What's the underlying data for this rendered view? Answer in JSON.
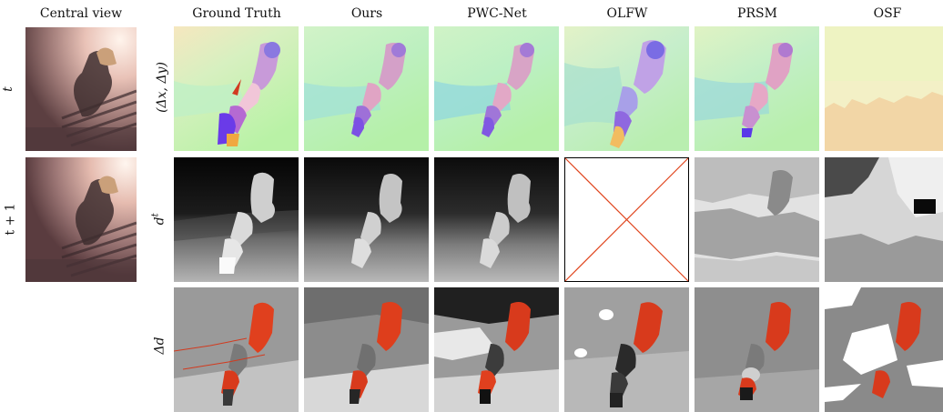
{
  "figure": {
    "headers": {
      "central_view": "Central view",
      "ground_truth": "Ground Truth",
      "ours": "Ours",
      "pwc_net": "PWC-Net",
      "olfw": "OLFW",
      "prsm": "PRSM",
      "osf": "OSF"
    },
    "time_labels": {
      "t": "t",
      "t_plus_1": "t + 1"
    },
    "row_labels": {
      "flow": "(Δx, Δy)",
      "disparity": "d",
      "disparity_sup": "t",
      "disparity_change": "Δd"
    },
    "missing_result_marker": "red-cross-icon"
  }
}
